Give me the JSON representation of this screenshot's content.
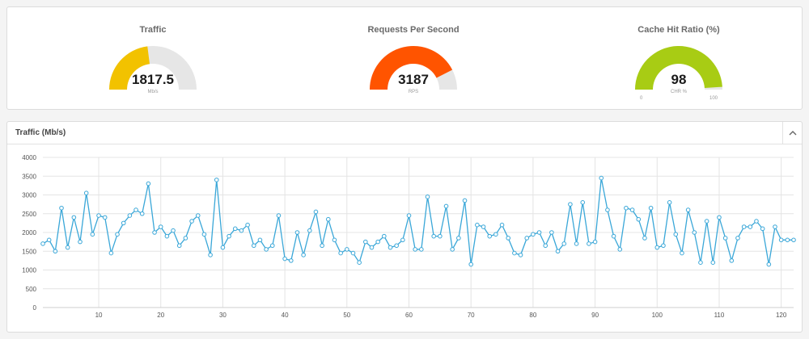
{
  "gauges": [
    {
      "title": "Traffic",
      "value": "1817.5",
      "unit": "Mb/s",
      "fraction": 0.46,
      "color": "#f2c200",
      "min": "",
      "max": ""
    },
    {
      "title": "Requests Per Second",
      "value": "3187",
      "unit": "RPS",
      "fraction": 0.85,
      "color": "#ff5400",
      "min": "",
      "max": ""
    },
    {
      "title": "Cache Hit Ratio (%)",
      "value": "98",
      "unit": "CHR %",
      "fraction": 0.98,
      "color": "#a8cc14",
      "min": "0",
      "max": "100"
    }
  ],
  "chart_panel": {
    "title": "Traffic (Mb/s)",
    "collapse_icon": "chevron-up-icon"
  },
  "chart_data": {
    "type": "line",
    "title": "Traffic (Mb/s)",
    "xlim": [
      1,
      122
    ],
    "ylim": [
      0,
      4000
    ],
    "x_ticks": [
      10,
      20,
      30,
      40,
      50,
      60,
      70,
      80,
      90,
      100,
      110,
      120
    ],
    "y_ticks": [
      0,
      500,
      1000,
      1500,
      2000,
      2500,
      3000,
      3500,
      4000
    ],
    "grid": true,
    "color": "#3aa7d8",
    "x": [
      1,
      2,
      3,
      4,
      5,
      6,
      7,
      8,
      9,
      10,
      11,
      12,
      13,
      14,
      15,
      16,
      17,
      18,
      19,
      20,
      21,
      22,
      23,
      24,
      25,
      26,
      27,
      28,
      29,
      30,
      31,
      32,
      33,
      34,
      35,
      36,
      37,
      38,
      39,
      40,
      41,
      42,
      43,
      44,
      45,
      46,
      47,
      48,
      49,
      50,
      51,
      52,
      53,
      54,
      55,
      56,
      57,
      58,
      59,
      60,
      61,
      62,
      63,
      64,
      65,
      66,
      67,
      68,
      69,
      70,
      71,
      72,
      73,
      74,
      75,
      76,
      77,
      78,
      79,
      80,
      81,
      82,
      83,
      84,
      85,
      86,
      87,
      88,
      89,
      90,
      91,
      92,
      93,
      94,
      95,
      96,
      97,
      98,
      99,
      100,
      101,
      102,
      103,
      104,
      105,
      106,
      107,
      108,
      109,
      110,
      111,
      112,
      113,
      114,
      115,
      116,
      117,
      118,
      119,
      120,
      121,
      122
    ],
    "values": [
      1700,
      1800,
      1500,
      2650,
      1600,
      2400,
      1750,
      3050,
      1950,
      2450,
      2400,
      1450,
      1950,
      2250,
      2450,
      2600,
      2500,
      3300,
      2000,
      2150,
      1900,
      2050,
      1650,
      1850,
      2300,
      2450,
      1950,
      1400,
      3400,
      1600,
      1900,
      2100,
      2050,
      2200,
      1650,
      1800,
      1550,
      1650,
      2450,
      1300,
      1250,
      2000,
      1400,
      2050,
      2550,
      1650,
      2350,
      1800,
      1450,
      1550,
      1450,
      1200,
      1750,
      1600,
      1750,
      1900,
      1600,
      1650,
      1800,
      2450,
      1550,
      1550,
      2950,
      1900,
      1900,
      2700,
      1550,
      1850,
      2850,
      1150,
      2200,
      2150,
      1900,
      1950,
      2200,
      1850,
      1450,
      1400,
      1850,
      1950,
      2000,
      1650,
      2000,
      1500,
      1700,
      2750,
      1700,
      2800,
      1700,
      1750,
      3450,
      2600,
      1900,
      1550,
      2650,
      2600,
      2350,
      1850,
      2650,
      1600,
      1650,
      2800,
      1950,
      1450,
      2600,
      2000,
      1200,
      2300,
      1200,
      2400,
      1850,
      1250,
      1850,
      2150,
      2150,
      2300,
      2100,
      1150,
      2150,
      1800,
      1800,
      1800
    ]
  }
}
